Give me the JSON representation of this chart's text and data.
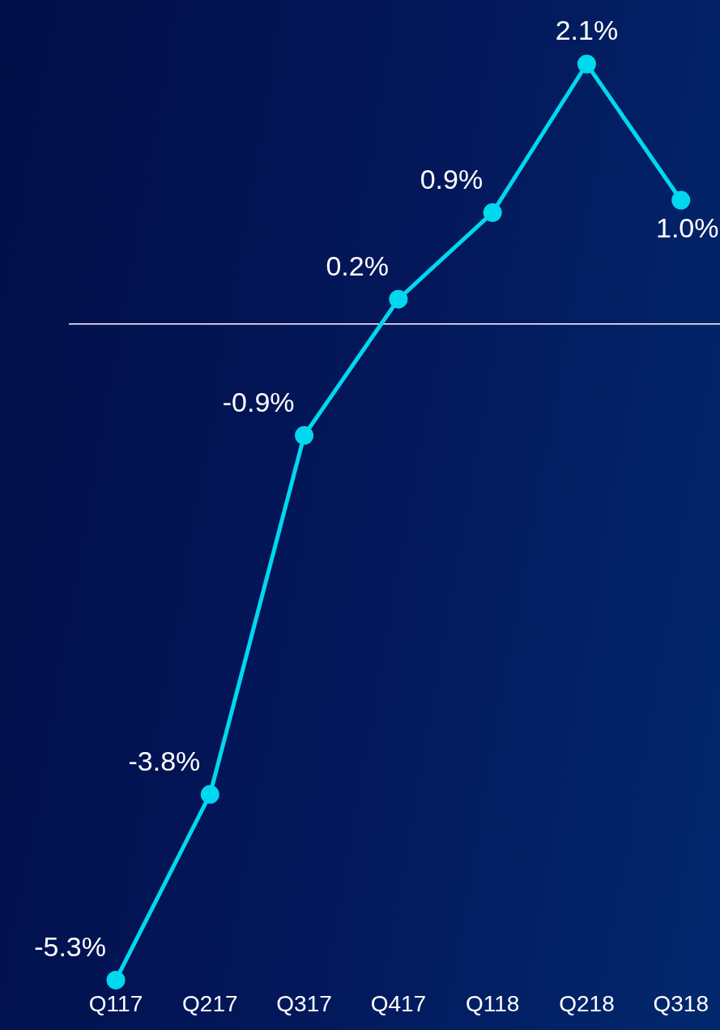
{
  "chart_data": {
    "type": "line",
    "categories": [
      "Q117",
      "Q217",
      "Q317",
      "Q417",
      "Q118",
      "Q218",
      "Q318"
    ],
    "series": [
      {
        "color": "#00d8ef",
        "values": [
          -5.3,
          -3.8,
          -0.9,
          0.2,
          0.9,
          2.1,
          1.0
        ],
        "value_labels": [
          "-5.3%",
          "-3.8%",
          "-0.9%",
          "0.2%",
          "0.9%",
          "2.1%",
          "1.0%"
        ]
      }
    ],
    "tick_labels": "x",
    "grid": false,
    "legend": false,
    "marker": "circle",
    "line_style": "solid",
    "ref_lines": [
      {
        "axis": "y",
        "value": 0,
        "color": "#ffffff"
      }
    ]
  }
}
